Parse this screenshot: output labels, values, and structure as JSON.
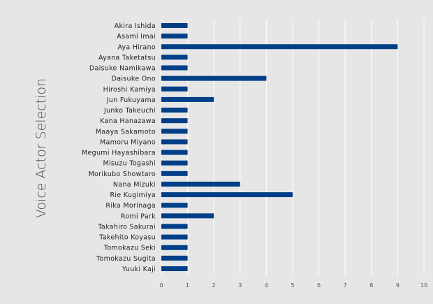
{
  "chart_data": {
    "type": "bar",
    "orientation": "horizontal",
    "title": "",
    "xlabel": "",
    "ylabel": "Voice Actor Selection",
    "categories": [
      "Akira Ishida",
      "Asami Imai",
      "Aya Hirano",
      "Ayana Taketatsu",
      "Daisuke Namikawa",
      "Daisuke Ono",
      "Hiroshi Kamiya",
      "Jun Fukuyama",
      "Junko Takeuchi",
      "Kana Hanazawa",
      "Maaya Sakamoto",
      "Mamoru Miyano",
      "Megumi Hayashibara",
      "Misuzu Togashi",
      "Morikubo Showtaro",
      "Nana Mizuki",
      "Rie Kugimiya",
      "Rika Morinaga",
      "Romi Park",
      "Takahiro Sakurai",
      "Takehito Koyasu",
      "Tomokazu Seki",
      "Tomokazu Sugita",
      "Yuuki Kaji"
    ],
    "values": [
      1,
      1,
      9,
      1,
      1,
      4,
      1,
      2,
      1,
      1,
      1,
      1,
      1,
      1,
      1,
      3,
      5,
      1,
      2,
      1,
      1,
      1,
      1,
      1
    ],
    "xlim": [
      0,
      10
    ],
    "xticks": [
      "0",
      "1",
      "2",
      "3",
      "4",
      "5",
      "6",
      "7",
      "8",
      "9",
      "10"
    ],
    "grid": true,
    "legend": "none",
    "bar_color": "#003f87",
    "background": "#e6e6e6"
  }
}
